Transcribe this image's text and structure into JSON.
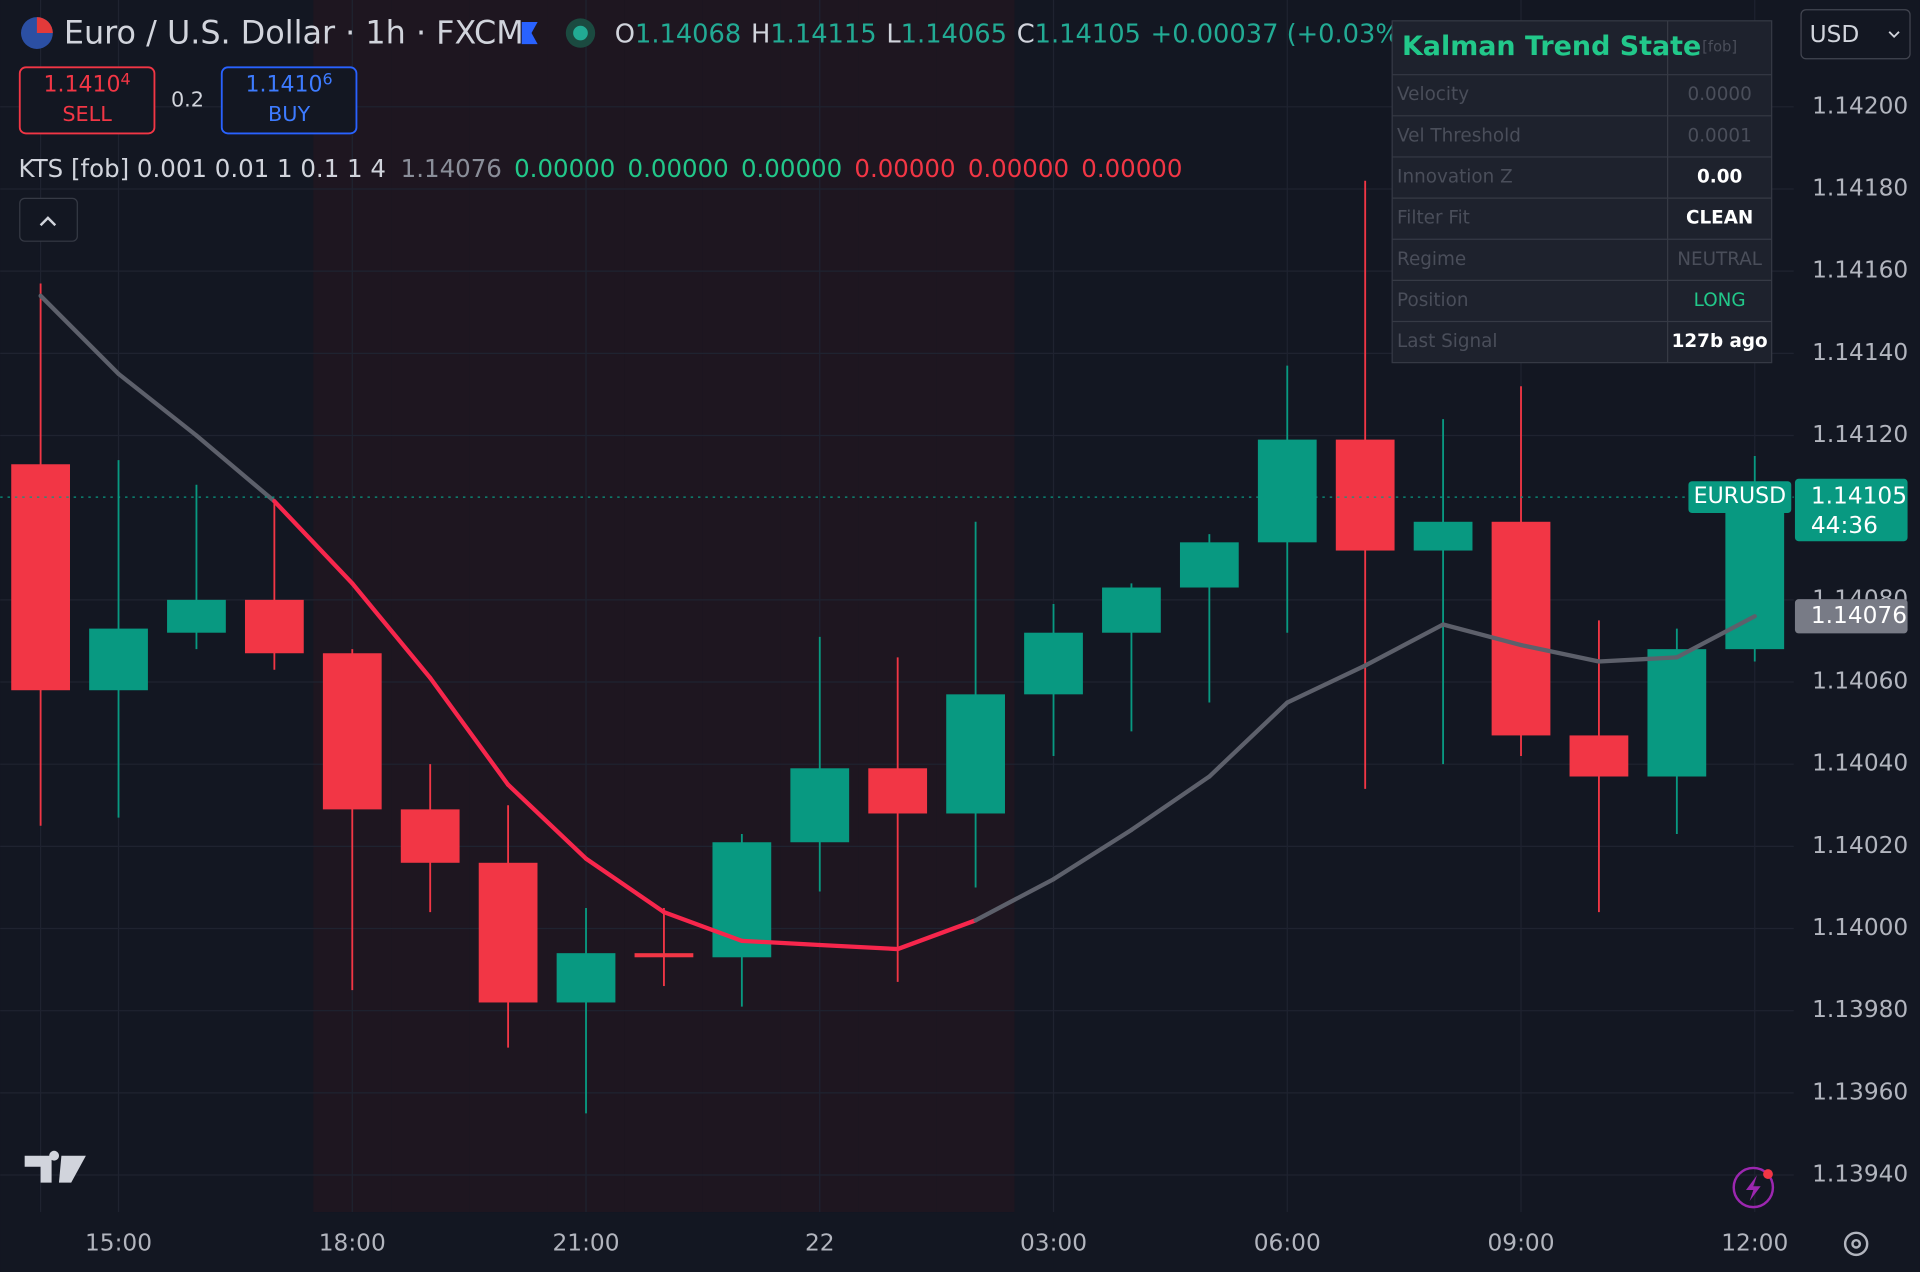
{
  "header": {
    "symbol": "Euro / U.S. Dollar · 1h · FXCM",
    "ohlc_labels": [
      "O",
      "H",
      "L",
      "C"
    ],
    "change": "+0.00037 (+0.03%)",
    "sell": {
      "price_main": "1.1410",
      "price_pip": "4",
      "label": "SELL"
    },
    "spread": "0.2",
    "buy": {
      "price_main": "1.1410",
      "price_pip": "6",
      "label": "BUY"
    },
    "currency": "USD"
  },
  "indicator_legend": {
    "name": "KTS [fob] 0.001 0.01 1 0.1 1 4",
    "values": [
      {
        "text": "0.00000",
        "color": "#22c88a"
      },
      {
        "text": "0.00000",
        "color": "#22c88a"
      },
      {
        "text": "0.00000",
        "color": "#22c88a"
      },
      {
        "text": "0.00000",
        "color": "#f23645"
      },
      {
        "text": "0.00000",
        "color": "#f23645"
      },
      {
        "text": "0.00000",
        "color": "#f23645"
      }
    ]
  },
  "table": {
    "title": "Kalman Trend State",
    "tag": "[fob]",
    "rows": [
      {
        "label": "Velocity",
        "value": "0.0000",
        "color": "#4a4e5a",
        "bold": false
      },
      {
        "label": "Vel Threshold",
        "value": "0.0001",
        "color": "#4a4e5a",
        "bold": false
      },
      {
        "label": "Innovation Z",
        "value": "0.00",
        "color": "#ffffff",
        "bold": true
      },
      {
        "label": "Filter Fit",
        "value": "CLEAN",
        "color": "#ffffff",
        "bold": true
      },
      {
        "label": "Regime",
        "value": "NEUTRAL",
        "color": "#4a4e5a",
        "bold": false
      },
      {
        "label": "Position",
        "value": "LONG",
        "color": "#22c88a",
        "bold": false
      },
      {
        "label": "Last Signal",
        "value": "127b ago",
        "color": "#ffffff",
        "bold": true
      }
    ]
  },
  "chart_data": {
    "type": "candlestick",
    "categories": [
      "",
      "15:00",
      null,
      null,
      "18:00",
      null,
      null,
      "21:00",
      null,
      null,
      "22",
      null,
      null,
      "03:00",
      null,
      null,
      "06:00",
      null,
      null,
      "09:00",
      null,
      null,
      "12:00"
    ],
    "open": [
      1.14113,
      1.14058,
      1.14072,
      1.1408,
      1.14067,
      1.14029,
      1.14016,
      1.13982,
      1.13994,
      1.13993,
      1.14021,
      1.14039,
      1.14028,
      1.14057,
      1.14072,
      1.14083,
      1.14094,
      1.14119,
      1.14092,
      1.14099,
      1.14047,
      1.14037,
      1.14068
    ],
    "high": [
      1.14157,
      1.14114,
      1.14108,
      1.14104,
      1.14068,
      1.1404,
      1.1403,
      1.14005,
      1.14005,
      1.14023,
      1.14071,
      1.14066,
      1.14099,
      1.14079,
      1.14084,
      1.14096,
      1.14137,
      1.14182,
      1.14124,
      1.14132,
      1.14075,
      1.14073,
      1.14115
    ],
    "low": [
      1.14025,
      1.14027,
      1.14068,
      1.14063,
      1.13985,
      1.14004,
      1.13971,
      1.13955,
      1.13986,
      1.13981,
      1.14009,
      1.13987,
      1.1401,
      1.14042,
      1.14048,
      1.14055,
      1.14072,
      1.14034,
      1.1404,
      1.14042,
      1.14004,
      1.14023,
      1.14065
    ],
    "close": [
      1.14058,
      1.14073,
      1.1408,
      1.14067,
      1.14029,
      1.14016,
      1.13982,
      1.13994,
      1.13993,
      1.14021,
      1.14039,
      1.14028,
      1.14057,
      1.14072,
      1.14083,
      1.14094,
      1.14119,
      1.14092,
      1.14099,
      1.14047,
      1.14037,
      1.14068,
      1.14105
    ],
    "up_color": "#089981",
    "down_color": "#f23645",
    "kalman": {
      "values": [
        1.14154,
        1.14135,
        1.1412,
        1.14104,
        1.14084,
        1.14061,
        1.14035,
        1.14017,
        1.14004,
        1.13997,
        1.13996,
        1.13995,
        1.14002,
        1.14012,
        1.14024,
        1.14037,
        1.14055,
        1.14064,
        1.14074,
        1.14069,
        1.14065,
        1.14066,
        1.14076
      ],
      "state_colors": [
        "#5d606b",
        "#5d606b",
        "#5d606b",
        "#5d606b",
        "#f7264c",
        "#f7264c",
        "#f7264c",
        "#f7264c",
        "#f7264c",
        "#f7264c",
        "#f7264c",
        "#f7264c",
        "#f7264c",
        "#5d606b",
        "#5d606b",
        "#5d606b",
        "#5d606b",
        "#5d606b",
        "#5d606b",
        "#5d606b",
        "#5d606b",
        "#5d606b",
        "#5d606b"
      ]
    },
    "ylim": [
      1.13931,
      1.14226
    ],
    "yticks": [
      {
        "value": 1.142,
        "label": "1.14200"
      },
      {
        "value": 1.1418,
        "label": "1.14180"
      },
      {
        "value": 1.1416,
        "label": "1.14160"
      },
      {
        "value": 1.1414,
        "label": "1.14140"
      },
      {
        "value": 1.1412,
        "label": "1.14120"
      },
      {
        "value": 1.1408,
        "label": "1.14080"
      },
      {
        "value": 1.1406,
        "label": "1.14060"
      },
      {
        "value": 1.1404,
        "label": "1.14040"
      },
      {
        "value": 1.1402,
        "label": "1.14020"
      },
      {
        "value": 1.14,
        "label": "1.14000"
      },
      {
        "value": 1.1398,
        "label": "1.13980"
      },
      {
        "value": 1.1396,
        "label": "1.13960"
      },
      {
        "value": 1.1394,
        "label": "1.13940"
      }
    ],
    "grid": true,
    "symbol_tag": "EURUSD",
    "countdown": "44:36"
  }
}
